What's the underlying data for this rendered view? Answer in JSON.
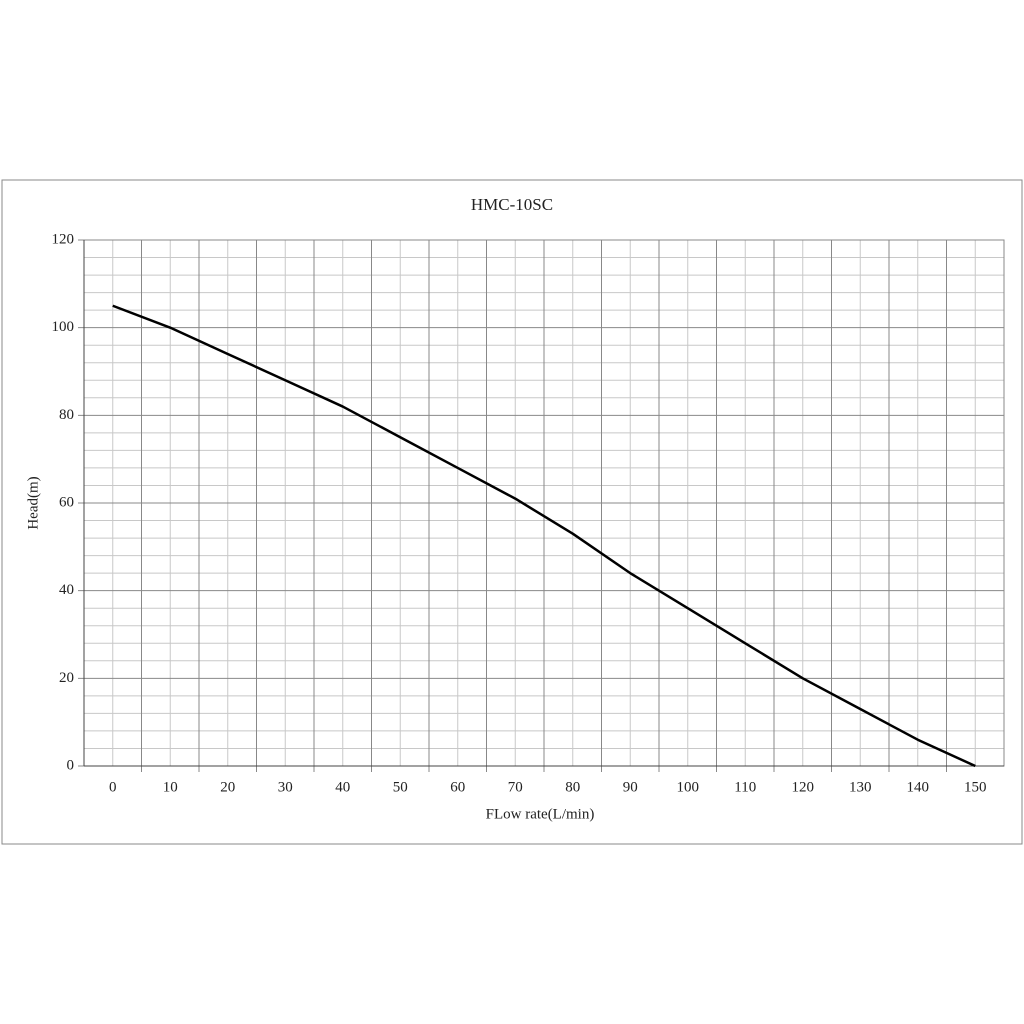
{
  "chart_data": {
    "type": "line",
    "title": "HMC-10SC",
    "x_label": "FLow rate(L/min)",
    "y_label": "Head(m)",
    "x": [
      0,
      10,
      20,
      30,
      40,
      50,
      60,
      70,
      80,
      90,
      100,
      110,
      120,
      130,
      140,
      150
    ],
    "series": [
      {
        "name": "HMC-10SC",
        "color": "#000000",
        "values": [
          105,
          100,
          94,
          88,
          82,
          75,
          68,
          61,
          53,
          44,
          36,
          28,
          20,
          13,
          6,
          0
        ]
      }
    ],
    "xlim": [
      -5,
      155
    ],
    "xticks": [
      0,
      10,
      20,
      30,
      40,
      50,
      60,
      70,
      80,
      90,
      100,
      110,
      120,
      130,
      140,
      150
    ],
    "ylim": [
      0,
      120
    ],
    "yticks": [
      0,
      20,
      40,
      60,
      80,
      100,
      120
    ],
    "grid": true
  }
}
